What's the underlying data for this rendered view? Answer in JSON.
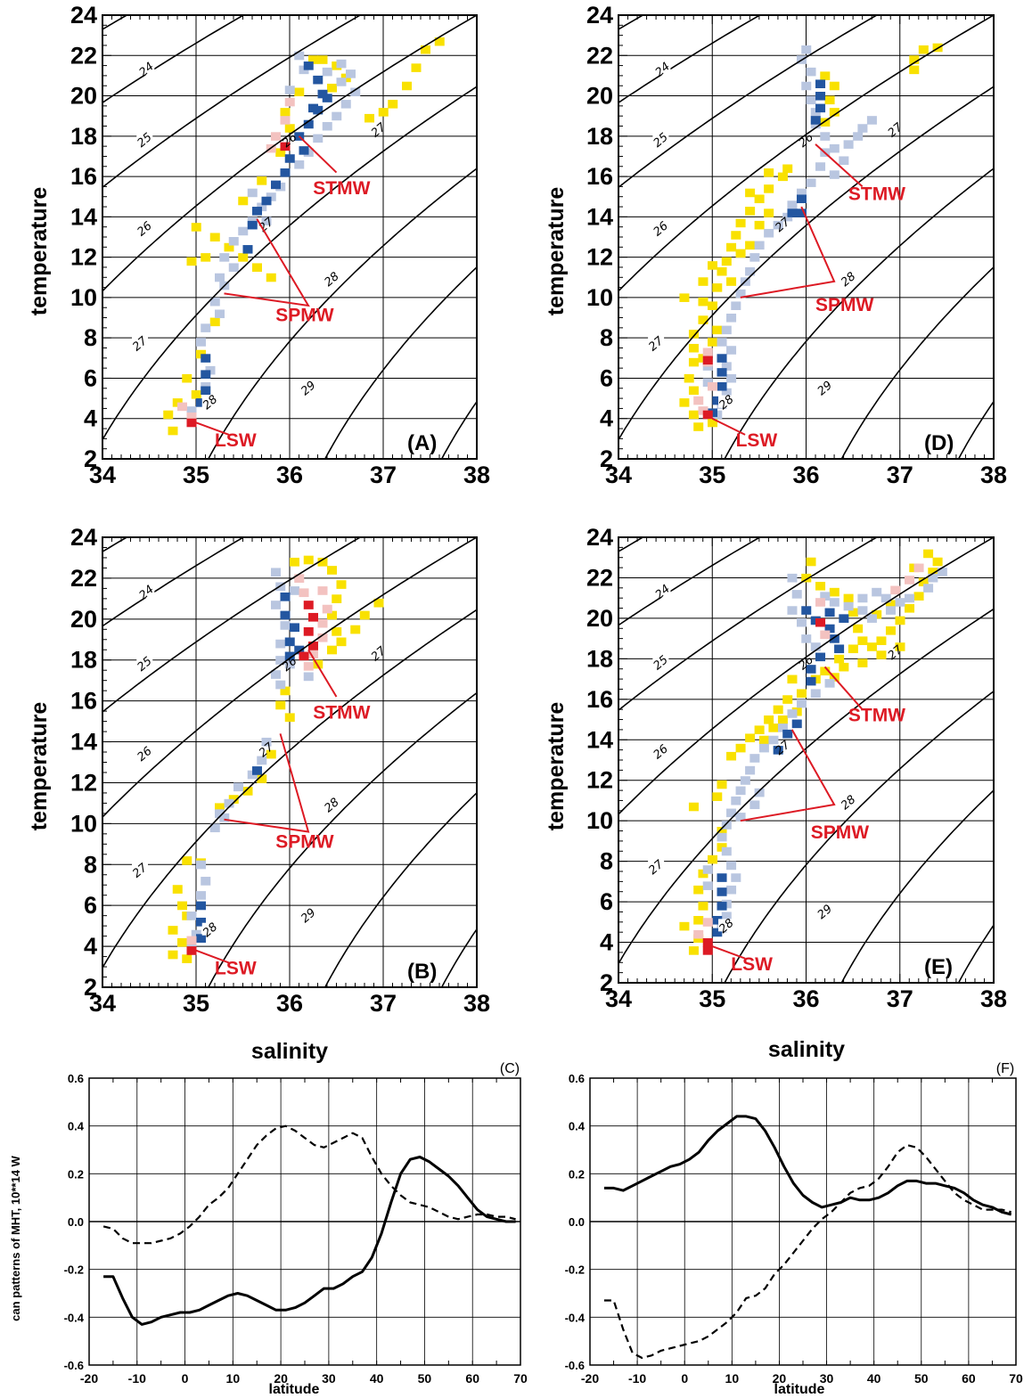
{
  "colors": {
    "density_intense": "#2356a0",
    "density_light": "#b9c6e0",
    "warm_intense": "#dd1a24",
    "warm_light": "#f3c2c0",
    "yellow": "#f9e100",
    "label_red": "#dd1a24"
  },
  "chart_data": [
    {
      "panel": "(A)",
      "type": "heatmap",
      "xlabel": "",
      "ylabel": "temperature",
      "xlim": [
        34,
        38
      ],
      "ylim": [
        2,
        24
      ],
      "x_ticks": [
        "34",
        "35",
        "36",
        "37",
        "38"
      ],
      "y_ticks": [
        "2",
        "4",
        "6",
        "8",
        "10",
        "12",
        "14",
        "16",
        "18",
        "20",
        "22",
        "24"
      ],
      "isopycnal_labels": [
        "24",
        "25",
        "26",
        "27",
        "28",
        "29"
      ],
      "water_masses": [
        {
          "name": "STMW",
          "salinity": 36.1,
          "temperature": 18.0
        },
        {
          "name": "SPMW",
          "salinity": 35.3,
          "temperature": 10.2
        },
        {
          "name": "LSW",
          "salinity": 35.0,
          "temperature": 3.8
        }
      ]
    },
    {
      "panel": "(B)",
      "type": "heatmap",
      "xlabel": "salinity",
      "ylabel": "temperature",
      "xlim": [
        34,
        38
      ],
      "ylim": [
        2,
        24
      ],
      "x_ticks": [
        "34",
        "35",
        "36",
        "37",
        "38"
      ],
      "y_ticks": [
        "2",
        "4",
        "6",
        "8",
        "10",
        "12",
        "14",
        "16",
        "18",
        "20",
        "22",
        "24"
      ],
      "isopycnal_labels": [
        "24",
        "25",
        "26",
        "27",
        "28",
        "29"
      ],
      "water_masses": [
        {
          "name": "STMW",
          "salinity": 36.2,
          "temperature": 18.5
        },
        {
          "name": "SPMW",
          "salinity": 35.3,
          "temperature": 10.2
        },
        {
          "name": "LSW",
          "salinity": 35.0,
          "temperature": 3.8
        }
      ]
    },
    {
      "panel": "(D)",
      "type": "heatmap",
      "xlabel": "",
      "ylabel": "temperature",
      "xlim": [
        34,
        38
      ],
      "ylim": [
        2,
        24
      ],
      "x_ticks": [
        "34",
        "35",
        "36",
        "37",
        "38"
      ],
      "y_ticks": [
        "2",
        "4",
        "6",
        "8",
        "10",
        "12",
        "14",
        "16",
        "18",
        "20",
        "22",
        "24"
      ],
      "isopycnal_labels": [
        "24",
        "25",
        "26",
        "27",
        "28",
        "29"
      ],
      "water_masses": [
        {
          "name": "STMW",
          "salinity": 36.1,
          "temperature": 17.6
        },
        {
          "name": "SPMW",
          "salinity": 35.3,
          "temperature": 10.0
        },
        {
          "name": "LSW",
          "salinity": 35.0,
          "temperature": 4.0
        }
      ]
    },
    {
      "panel": "(E)",
      "type": "heatmap",
      "xlabel": "salinity",
      "ylabel": "temperature",
      "xlim": [
        34,
        38
      ],
      "ylim": [
        2,
        24
      ],
      "x_ticks": [
        "34",
        "35",
        "36",
        "37",
        "38"
      ],
      "y_ticks": [
        "2",
        "4",
        "6",
        "8",
        "10",
        "12",
        "14",
        "16",
        "18",
        "20",
        "22",
        "24"
      ],
      "isopycnal_labels": [
        "24",
        "25",
        "26",
        "27",
        "28",
        "29"
      ],
      "water_masses": [
        {
          "name": "STMW",
          "salinity": 36.2,
          "temperature": 17.6
        },
        {
          "name": "SPMW",
          "salinity": 35.3,
          "temperature": 10.0
        },
        {
          "name": "LSW",
          "salinity": 35.0,
          "temperature": 3.8
        }
      ]
    },
    {
      "panel": "(C)",
      "type": "line",
      "xlabel": "latitude",
      "ylabel": "can patterns of MHT,  10**14 W",
      "xlim": [
        -20,
        70
      ],
      "ylim": [
        -0.6,
        0.6
      ],
      "x_ticks": [
        "-20",
        "-10",
        "0",
        "10",
        "20",
        "30",
        "40",
        "50",
        "60",
        "70"
      ],
      "y_ticks": [
        "-0.6",
        "-0.4",
        "-0.2",
        "0.0",
        "0.2",
        "0.4",
        "0.6"
      ],
      "series": [
        {
          "style": "solid",
          "x": [
            -17,
            -15,
            -13,
            -11,
            -9,
            -7,
            -5,
            -3,
            -1,
            1,
            3,
            5,
            7,
            9,
            11,
            13,
            15,
            17,
            19,
            21,
            23,
            25,
            27,
            29,
            31,
            33,
            35,
            37,
            39,
            41,
            43,
            45,
            47,
            49,
            51,
            53,
            55,
            57,
            59,
            61,
            63,
            65,
            67,
            69
          ],
          "y": [
            -0.23,
            -0.23,
            -0.32,
            -0.4,
            -0.43,
            -0.42,
            -0.4,
            -0.39,
            -0.38,
            -0.38,
            -0.37,
            -0.35,
            -0.33,
            -0.31,
            -0.3,
            -0.31,
            -0.33,
            -0.35,
            -0.37,
            -0.37,
            -0.36,
            -0.34,
            -0.31,
            -0.28,
            -0.28,
            -0.26,
            -0.23,
            -0.21,
            -0.15,
            -0.05,
            0.08,
            0.2,
            0.26,
            0.27,
            0.25,
            0.22,
            0.19,
            0.15,
            0.1,
            0.05,
            0.02,
            0.01,
            0.0,
            0.0
          ]
        },
        {
          "style": "dashed",
          "x": [
            -17,
            -15,
            -13,
            -11,
            -9,
            -7,
            -5,
            -3,
            -1,
            1,
            3,
            5,
            7,
            9,
            11,
            13,
            15,
            17,
            19,
            21,
            23,
            25,
            27,
            29,
            31,
            33,
            35,
            37,
            39,
            41,
            43,
            45,
            47,
            49,
            51,
            53,
            55,
            57,
            59,
            61,
            63,
            65,
            67,
            69
          ],
          "y": [
            -0.02,
            -0.03,
            -0.07,
            -0.09,
            -0.09,
            -0.09,
            -0.08,
            -0.07,
            -0.05,
            -0.02,
            0.02,
            0.07,
            0.1,
            0.14,
            0.2,
            0.26,
            0.32,
            0.36,
            0.39,
            0.4,
            0.38,
            0.35,
            0.32,
            0.31,
            0.33,
            0.35,
            0.37,
            0.35,
            0.27,
            0.2,
            0.15,
            0.11,
            0.08,
            0.07,
            0.06,
            0.04,
            0.02,
            0.01,
            0.02,
            0.03,
            0.03,
            0.02,
            0.02,
            0.01
          ]
        }
      ]
    },
    {
      "panel": "(F)",
      "type": "line",
      "xlabel": "latitude",
      "ylabel": "",
      "xlim": [
        -20,
        70
      ],
      "ylim": [
        -0.6,
        0.6
      ],
      "x_ticks": [
        "-20",
        "-10",
        "0",
        "10",
        "20",
        "30",
        "40",
        "50",
        "60",
        "70"
      ],
      "y_ticks": [
        "-0.6",
        "-0.4",
        "-0.2",
        "0.0",
        "0.2",
        "0.4",
        "0.6"
      ],
      "series": [
        {
          "style": "solid",
          "x": [
            -17,
            -15,
            -13,
            -11,
            -9,
            -7,
            -5,
            -3,
            -1,
            1,
            3,
            5,
            7,
            9,
            11,
            13,
            15,
            17,
            19,
            21,
            23,
            25,
            27,
            29,
            31,
            33,
            35,
            37,
            39,
            41,
            43,
            45,
            47,
            49,
            51,
            53,
            55,
            57,
            59,
            61,
            63,
            65,
            67,
            69
          ],
          "y": [
            0.14,
            0.14,
            0.13,
            0.15,
            0.17,
            0.19,
            0.21,
            0.23,
            0.24,
            0.26,
            0.29,
            0.34,
            0.38,
            0.41,
            0.44,
            0.44,
            0.43,
            0.38,
            0.31,
            0.23,
            0.16,
            0.11,
            0.08,
            0.06,
            0.07,
            0.08,
            0.1,
            0.09,
            0.09,
            0.1,
            0.12,
            0.15,
            0.17,
            0.17,
            0.16,
            0.16,
            0.15,
            0.14,
            0.12,
            0.09,
            0.07,
            0.06,
            0.04,
            0.03
          ]
        },
        {
          "style": "dashed",
          "x": [
            -17,
            -15,
            -13,
            -11,
            -9,
            -7,
            -5,
            -3,
            -1,
            1,
            3,
            5,
            7,
            9,
            11,
            13,
            15,
            17,
            19,
            21,
            23,
            25,
            27,
            29,
            31,
            33,
            35,
            37,
            39,
            41,
            43,
            45,
            47,
            49,
            51,
            53,
            55,
            57,
            59,
            61,
            63,
            65,
            67,
            69
          ],
          "y": [
            -0.33,
            -0.33,
            -0.45,
            -0.55,
            -0.57,
            -0.56,
            -0.54,
            -0.53,
            -0.52,
            -0.51,
            -0.5,
            -0.48,
            -0.45,
            -0.42,
            -0.38,
            -0.32,
            -0.31,
            -0.28,
            -0.22,
            -0.18,
            -0.13,
            -0.08,
            -0.03,
            0.01,
            0.04,
            0.08,
            0.12,
            0.14,
            0.15,
            0.18,
            0.23,
            0.29,
            0.32,
            0.31,
            0.27,
            0.22,
            0.17,
            0.12,
            0.09,
            0.07,
            0.05,
            0.05,
            0.05,
            0.04
          ]
        }
      ]
    }
  ]
}
